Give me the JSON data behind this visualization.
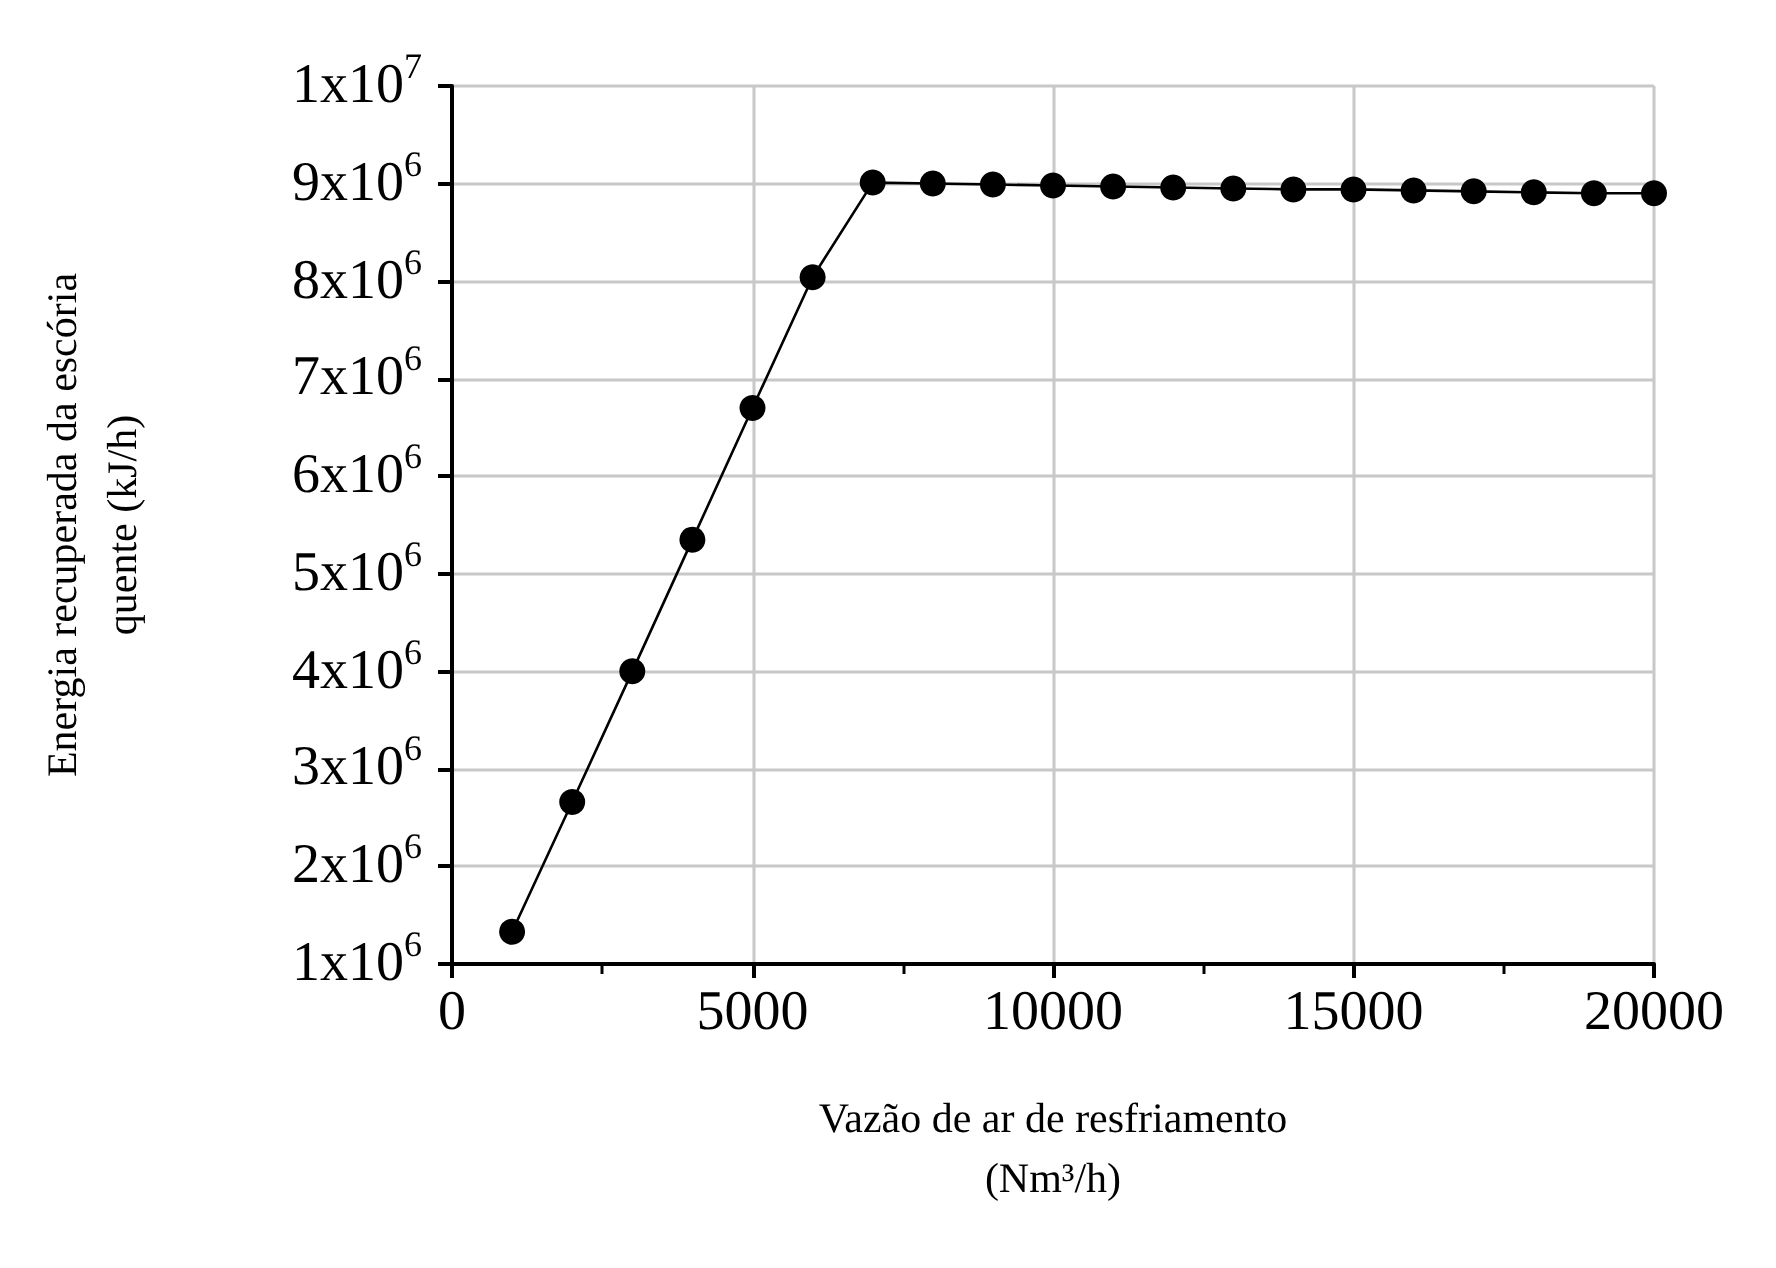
{
  "chart_data": {
    "type": "line",
    "xlabel": "Vazão de ar de resfriamento\n(Nm³/h)",
    "ylabel": "Energia recuperada da escória\nquente (kJ/h)",
    "x": [
      1000,
      2000,
      3000,
      4000,
      5000,
      6000,
      7000,
      8000,
      9000,
      10000,
      11000,
      12000,
      13000,
      14000,
      15000,
      16000,
      17000,
      18000,
      19000,
      20000
    ],
    "series": [
      {
        "color": "#000000",
        "values": [
          1330000,
          2660000,
          4000000,
          5350000,
          6700000,
          8040000,
          9010000,
          9000000,
          8990000,
          8980000,
          8970000,
          8960000,
          8950000,
          8940000,
          8940000,
          8930000,
          8920000,
          8910000,
          8900000,
          8900000
        ]
      }
    ],
    "xlim": [
      0,
      20000
    ],
    "xticks": [
      0,
      5000,
      10000,
      15000,
      20000
    ],
    "ylim": [
      1000000,
      10000000
    ],
    "yticks": [
      {
        "value": 1000000,
        "label": "1x10$^{6}$"
      },
      {
        "value": 2000000,
        "label": "2x10$^{6}$"
      },
      {
        "value": 3000000,
        "label": "3x10$^{6}$"
      },
      {
        "value": 4000000,
        "label": "4x10$^{6}$"
      },
      {
        "value": 5000000,
        "label": "5x10$^{6}$"
      },
      {
        "value": 6000000,
        "label": "6x10$^{6}$"
      },
      {
        "value": 7000000,
        "label": "7x10$^{6}$"
      },
      {
        "value": 8000000,
        "label": "8x10$^{6}$"
      },
      {
        "value": 9000000,
        "label": "9x10$^{6}$"
      },
      {
        "value": 10000000,
        "label": "1x10$^{7}$"
      }
    ],
    "grid": true,
    "marker": "circle",
    "line_style": "solid"
  }
}
